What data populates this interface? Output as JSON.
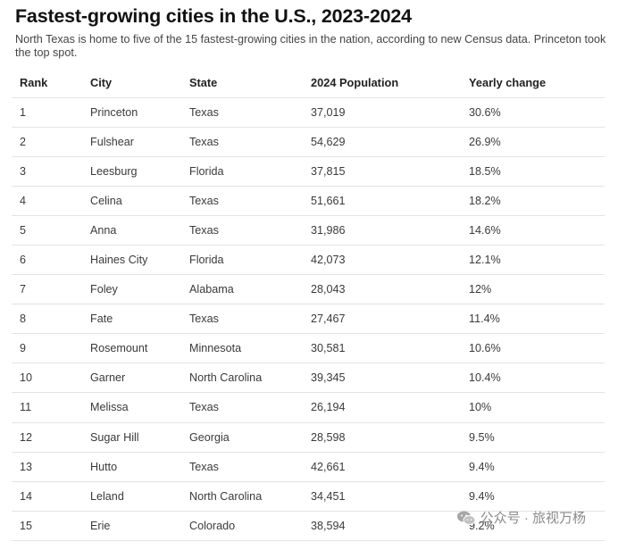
{
  "chart_data": {
    "type": "table",
    "title": "Fastest-growing cities in the U.S., 2023-2024",
    "subtitle": "North Texas is home to five of the 15 fastest-growing cities in the nation, according to new Census data. Princeton took the top spot.",
    "columns": [
      "Rank",
      "City",
      "State",
      "2024 Population",
      "Yearly change"
    ],
    "rows": [
      [
        "1",
        "Princeton",
        "Texas",
        "37,019",
        "30.6%"
      ],
      [
        "2",
        "Fulshear",
        "Texas",
        "54,629",
        "26.9%"
      ],
      [
        "3",
        "Leesburg",
        "Florida",
        "37,815",
        "18.5%"
      ],
      [
        "4",
        "Celina",
        "Texas",
        "51,661",
        "18.2%"
      ],
      [
        "5",
        "Anna",
        "Texas",
        "31,986",
        "14.6%"
      ],
      [
        "6",
        "Haines City",
        "Florida",
        "42,073",
        "12.1%"
      ],
      [
        "7",
        "Foley",
        "Alabama",
        "28,043",
        "12%"
      ],
      [
        "8",
        "Fate",
        "Texas",
        "27,467",
        "11.4%"
      ],
      [
        "9",
        "Rosemount",
        "Minnesota",
        "30,581",
        "10.6%"
      ],
      [
        "10",
        "Garner",
        "North Carolina",
        "39,345",
        "10.4%"
      ],
      [
        "11",
        "Melissa",
        "Texas",
        "26,194",
        "10%"
      ],
      [
        "12",
        "Sugar Hill",
        "Georgia",
        "28,598",
        "9.5%"
      ],
      [
        "13",
        "Hutto",
        "Texas",
        "42,661",
        "9.4%"
      ],
      [
        "14",
        "Leland",
        "North Carolina",
        "34,451",
        "9.4%"
      ],
      [
        "15",
        "Erie",
        "Colorado",
        "38,594",
        "9.2%"
      ]
    ]
  },
  "watermark": {
    "text": "公众号 · 旅视万杨",
    "icon": "wechat-icon"
  },
  "colors": {
    "text": "#333333",
    "heading": "#111111",
    "rule": "#e4e4e4",
    "watermark": "#8a8a8a"
  }
}
